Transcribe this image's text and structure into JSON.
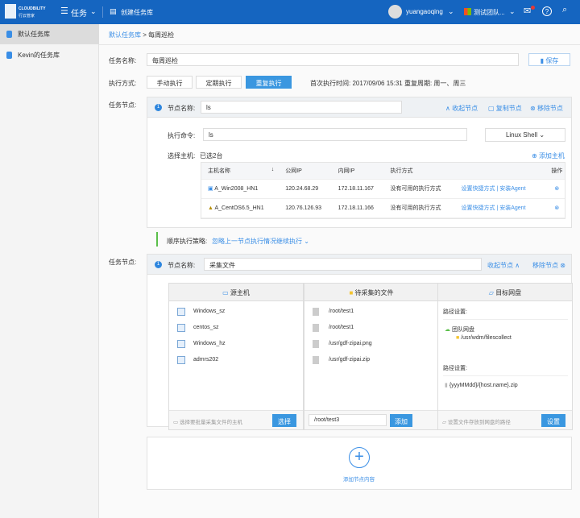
{
  "topbar": {
    "logo": "CLOUDBILITY",
    "logo_sub": "行云管家",
    "menu": "任务",
    "create": "创建任务库",
    "user": "yuangaoqing",
    "team": "测试团队..."
  },
  "sidebar": {
    "items": [
      {
        "label": "默认任务库",
        "selected": true
      },
      {
        "label": "Kevin的任务库",
        "selected": false
      }
    ]
  },
  "breadcrumb": {
    "parent": "默认任务库",
    "sep": ">",
    "current": "每周巡检"
  },
  "form": {
    "name_label": "任务名称:",
    "name_value": "每周巡检",
    "save": "保存",
    "exec_label": "执行方式:",
    "exec_modes": [
      "手动执行",
      "定期执行",
      "重复执行"
    ],
    "active_mode": "重复执行",
    "schedule": "首次执行时间: 2017/09/06  15:31   重复周期: 周一、周三"
  },
  "node1": {
    "label": "任务节点:",
    "num": "1",
    "name_label": "节点名称:",
    "name_value": "ls",
    "collapse": "收起节点",
    "copy": "复制节点",
    "remove": "移除节点",
    "cmd_label": "执行命令:",
    "cmd_value": "ls",
    "shell": "Linux Shell",
    "host_label": "选择主机:",
    "host_count": "已选2台",
    "add_host": "添加主机",
    "columns": [
      "主机名称",
      "公网IP",
      "内网IP",
      "执行方式",
      "",
      "操作"
    ],
    "rows": [
      {
        "name": "A_Win2008_HN1",
        "public": "120.24.68.29",
        "private": "172.18.11.167",
        "mode": "没有可用的执行方式",
        "action": "设置快捷方式 | 安装Agent"
      },
      {
        "name": "A_CentOS6.5_HN1",
        "public": "120.76.126.93",
        "private": "172.18.11.166",
        "mode": "没有可用的执行方式",
        "action": "设置快捷方式 | 安装Agent"
      }
    ]
  },
  "strategy": {
    "label": "顺序执行策略:",
    "value": "忽略上一节点执行情况继续执行"
  },
  "node2": {
    "label": "任务节点:",
    "num": "1",
    "name_label": "节点名称:",
    "name_value": "采集文件",
    "collapse": "收起节点",
    "remove": "移除节点",
    "source": {
      "title": "源主机",
      "hosts": [
        "Windows_sz",
        "centos_sz",
        "Windows_hz",
        "admrs202"
      ],
      "hint": "选择要批量采集文件的主机",
      "button": "选择"
    },
    "files": {
      "title": "待采集的文件",
      "items": [
        "/root/test1",
        "/root/test1",
        "/usr/gdf-zipai.png",
        "/usr/gdf-zipai.zip"
      ],
      "input": "/root/test3",
      "button": "添加"
    },
    "target": {
      "title": "目标网盘",
      "path_label1": "路径设置:",
      "disk": "团队网盘",
      "folder": "/usr/wdm/filescollect",
      "path_label2": "路径设置:",
      "file": "{yyyMMdd}/{host.name}.zip",
      "hint": "设置文件存放到网盘的路径",
      "button": "设置"
    }
  },
  "add_node": "添加节点内容"
}
